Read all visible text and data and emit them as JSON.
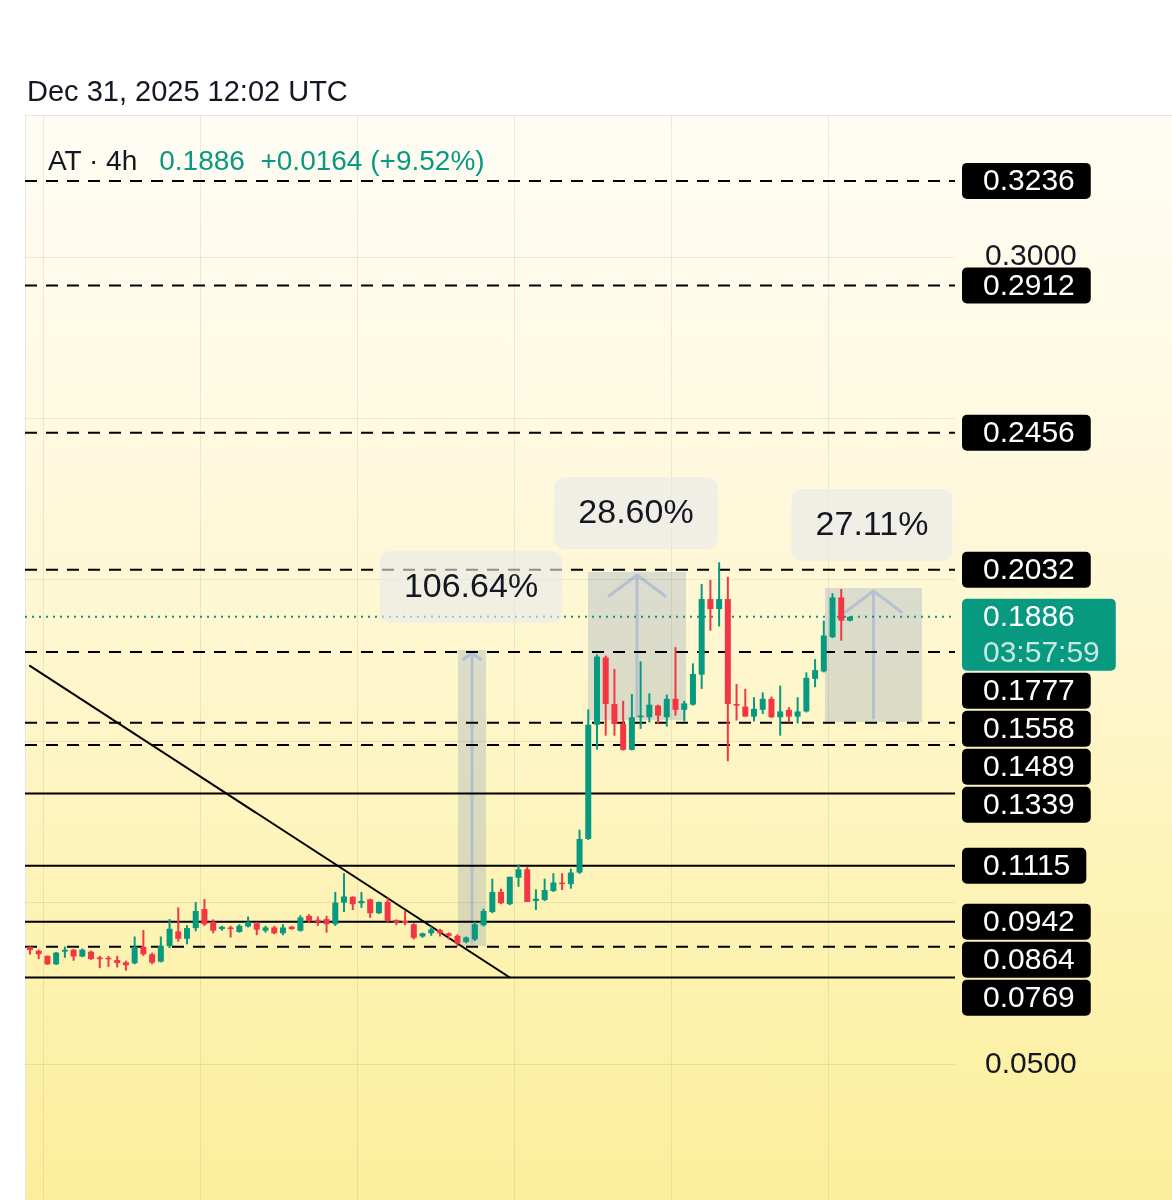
{
  "chart_data": {
    "type": "candlestick",
    "title": "Dec 31, 2025 12:02 UTC",
    "subtitle": "AT · 4h",
    "categories": [
      null,
      null,
      null,
      null,
      null,
      null,
      null,
      null,
      null,
      null,
      null,
      null,
      null,
      null,
      null,
      null,
      null,
      null,
      null,
      null,
      null,
      null,
      null,
      null,
      null,
      null,
      null,
      null,
      null,
      null,
      null,
      null,
      null,
      null,
      null,
      null,
      null,
      null,
      null,
      null,
      null,
      null,
      null,
      null,
      null,
      null,
      null,
      null,
      null,
      null,
      null,
      null,
      null,
      null,
      null,
      null,
      null,
      null,
      null,
      null,
      null,
      null,
      null,
      null,
      null,
      null,
      null,
      null,
      null,
      null,
      null,
      null,
      null,
      null,
      null,
      null,
      null,
      null,
      null,
      null,
      null,
      null,
      null,
      null,
      null,
      null,
      null,
      null,
      null,
      null,
      null,
      null,
      null,
      null,
      null
    ],
    "ohlc": [
      [
        0.0864,
        0.0865,
        0.084,
        0.0854
      ],
      [
        0.0852,
        0.0855,
        0.0826,
        0.0841
      ],
      [
        0.0836,
        0.0837,
        0.0808,
        0.081
      ],
      [
        0.081,
        0.0848,
        0.0808,
        0.0846
      ],
      [
        0.0849,
        0.0865,
        0.083,
        0.0855
      ],
      [
        0.0855,
        0.0857,
        0.0821,
        0.0834
      ],
      [
        0.0834,
        0.0859,
        0.0832,
        0.0855
      ],
      [
        0.0849,
        0.0852,
        0.0824,
        0.0826
      ],
      [
        0.0831,
        0.0836,
        0.0798,
        0.0826
      ],
      [
        0.083,
        0.0836,
        0.0802,
        0.0826
      ],
      [
        0.0823,
        0.0836,
        0.08,
        0.0814
      ],
      [
        0.0816,
        0.0821,
        0.079,
        0.0807
      ],
      [
        0.0813,
        0.0896,
        0.081,
        0.0864
      ],
      [
        0.0864,
        0.0916,
        0.0836,
        0.0841
      ],
      [
        0.0841,
        0.0846,
        0.081,
        0.0815
      ],
      [
        0.0818,
        0.0896,
        0.0816,
        0.0867
      ],
      [
        0.0866,
        0.095,
        0.086,
        0.092
      ],
      [
        0.0912,
        0.0986,
        0.088,
        0.0889
      ],
      [
        0.0889,
        0.0931,
        0.0872,
        0.0922
      ],
      [
        0.0922,
        0.1003,
        0.0912,
        0.0975
      ],
      [
        0.0981,
        0.1012,
        0.0929,
        0.0934
      ],
      [
        0.0941,
        0.0949,
        0.0906,
        0.0914
      ],
      [
        0.0919,
        0.0929,
        0.0914,
        0.0926
      ],
      [
        0.0924,
        0.0929,
        0.0893,
        0.0919
      ],
      [
        0.091,
        0.0934,
        0.0908,
        0.0929
      ],
      [
        0.0927,
        0.0958,
        0.0924,
        0.0941
      ],
      [
        0.0937,
        0.0941,
        0.09,
        0.0917
      ],
      [
        0.0914,
        0.0929,
        0.0908,
        0.0924
      ],
      [
        0.0924,
        0.0929,
        0.0903,
        0.0906
      ],
      [
        0.0906,
        0.0934,
        0.09,
        0.0924
      ],
      [
        0.0926,
        0.0929,
        0.0917,
        0.0919
      ],
      [
        0.0914,
        0.0962,
        0.0911,
        0.0955
      ],
      [
        0.096,
        0.0965,
        0.0939,
        0.0944
      ],
      [
        0.0948,
        0.0958,
        0.0929,
        0.0941
      ],
      [
        0.095,
        0.096,
        0.0908,
        0.0934
      ],
      [
        0.0934,
        0.1034,
        0.0929,
        0.1001
      ],
      [
        0.1001,
        0.1092,
        0.0972,
        0.102
      ],
      [
        0.1019,
        0.102,
        0.0978,
        0.0996
      ],
      [
        0.0999,
        0.1034,
        0.0985,
        0.1006
      ],
      [
        0.1011,
        0.1013,
        0.0954,
        0.0968
      ],
      [
        0.0968,
        0.1004,
        0.0966,
        0.1003
      ],
      [
        0.1003,
        0.1016,
        0.0941,
        0.0944
      ],
      [
        0.0947,
        0.0949,
        0.0931,
        0.0939
      ],
      [
        0.0944,
        0.0975,
        0.0931,
        0.0937
      ],
      [
        0.0934,
        0.0937,
        0.0887,
        0.0892
      ],
      [
        0.0896,
        0.0908,
        0.0892,
        0.0906
      ],
      [
        0.0906,
        0.0927,
        0.0898,
        0.0918
      ],
      [
        0.0916,
        0.092,
        0.0896,
        0.0906
      ],
      [
        0.0906,
        0.0908,
        0.0887,
        0.0898
      ],
      [
        0.0898,
        0.0903,
        0.0865,
        0.0875
      ],
      [
        0.0879,
        0.0896,
        0.0875,
        0.0893
      ],
      [
        0.0887,
        0.0941,
        0.0882,
        0.0934
      ],
      [
        0.0931,
        0.0982,
        0.0927,
        0.0975
      ],
      [
        0.0972,
        0.1075,
        0.0968,
        0.1034
      ],
      [
        0.1034,
        0.1044,
        0.0996,
        0.0999
      ],
      [
        0.0996,
        0.1081,
        0.0993,
        0.1081
      ],
      [
        0.1078,
        0.1119,
        0.105,
        0.1104
      ],
      [
        0.1104,
        0.1112,
        0.1003,
        0.1003
      ],
      [
        0.1006,
        0.1042,
        0.0978,
        0.1013
      ],
      [
        0.1009,
        0.1075,
        0.1006,
        0.104
      ],
      [
        0.1037,
        0.1092,
        0.1034,
        0.1063
      ],
      [
        0.1063,
        0.1092,
        0.104,
        0.1058
      ],
      [
        0.1058,
        0.1106,
        0.1044,
        0.1094
      ],
      [
        0.1094,
        0.1227,
        0.109,
        0.1198
      ],
      [
        0.1198,
        0.1599,
        0.1195,
        0.1552
      ],
      [
        0.1552,
        0.1769,
        0.1475,
        0.1763
      ],
      [
        0.176,
        0.1766,
        0.1518,
        0.1616
      ],
      [
        0.1616,
        0.1724,
        0.1518,
        0.1554
      ],
      [
        0.1554,
        0.1626,
        0.1472,
        0.1474
      ],
      [
        0.1474,
        0.1647,
        0.1472,
        0.1575
      ],
      [
        0.1575,
        0.1748,
        0.1539,
        0.158
      ],
      [
        0.1575,
        0.1649,
        0.1559,
        0.1614
      ],
      [
        0.1611,
        0.1614,
        0.1556,
        0.158
      ],
      [
        0.1575,
        0.1645,
        0.1546,
        0.1632
      ],
      [
        0.1632,
        0.1792,
        0.158,
        0.1598
      ],
      [
        0.1598,
        0.1626,
        0.1562,
        0.1618
      ],
      [
        0.1614,
        0.1742,
        0.1611,
        0.1709
      ],
      [
        0.1707,
        0.1988,
        0.1663,
        0.1941
      ],
      [
        0.1941,
        0.2,
        0.1843,
        0.191
      ],
      [
        0.191,
        0.2055,
        0.1856,
        0.1941
      ],
      [
        0.1941,
        0.201,
        0.1439,
        0.1616
      ],
      [
        0.1616,
        0.1678,
        0.1565,
        0.1611
      ],
      [
        0.1608,
        0.1663,
        0.1577,
        0.1577
      ],
      [
        0.1577,
        0.1637,
        0.1562,
        0.1601
      ],
      [
        0.1598,
        0.1652,
        0.1585,
        0.1632
      ],
      [
        0.1632,
        0.1639,
        0.1573,
        0.1575
      ],
      [
        0.1575,
        0.1673,
        0.1518,
        0.1593
      ],
      [
        0.1598,
        0.1606,
        0.1559,
        0.1577
      ],
      [
        0.1577,
        0.1637,
        0.1556,
        0.1593
      ],
      [
        0.1593,
        0.1714,
        0.159,
        0.1697
      ],
      [
        0.1694,
        0.1755,
        0.1668,
        0.1721
      ],
      [
        0.1717,
        0.1874,
        0.1714,
        0.1828
      ],
      [
        0.1823,
        0.1959,
        0.182,
        0.1946
      ],
      [
        0.1946,
        0.1972,
        0.1812,
        0.1874
      ],
      [
        0.1874,
        0.1888,
        0.1872,
        0.1886
      ]
    ],
    "colors": [
      "#f23645",
      "#f23645",
      "#f23645",
      "#089981",
      "#089981",
      "#f23645",
      "#089981",
      "#f23645",
      "#f23645",
      "#f23645",
      "#f23645",
      "#f23645",
      "#089981",
      "#f23645",
      "#f23645",
      "#089981",
      "#089981",
      "#f23645",
      "#089981",
      "#089981",
      "#f23645",
      "#f23645",
      "#089981",
      "#f23645",
      "#089981",
      "#089981",
      "#f23645",
      "#089981",
      "#f23645",
      "#089981",
      "#f23645",
      "#089981",
      "#f23645",
      "#f23645",
      "#f23645",
      "#089981",
      "#089981",
      "#f23645",
      "#089981",
      "#f23645",
      "#089981",
      "#f23645",
      "#f23645",
      "#f23645",
      "#f23645",
      "#089981",
      "#089981",
      "#f23645",
      "#f23645",
      "#f23645",
      "#089981",
      "#089981",
      "#089981",
      "#089981",
      "#f23645",
      "#089981",
      "#089981",
      "#f23645",
      "#089981",
      "#089981",
      "#089981",
      "#f23645",
      "#089981",
      "#089981",
      "#089981",
      "#089981",
      "#f23645",
      "#f23645",
      "#f23645",
      "#089981",
      "#089981",
      "#089981",
      "#f23645",
      "#089981",
      "#f23645",
      "#089981",
      "#089981",
      "#089981",
      "#f23645",
      "#089981",
      "#f23645",
      "#f23645",
      "#f23645",
      "#089981",
      "#089981",
      "#f23645",
      "#089981",
      "#f23645",
      "#089981",
      "#089981",
      "#089981",
      "#089981",
      "#089981",
      "#f23645",
      "#089981"
    ],
    "series": [
      {
        "type": "line",
        "color": "#000000",
        "values": [
          0.1734,
          null,
          null,
          null,
          null,
          null,
          null,
          null,
          null,
          null,
          null,
          null,
          null,
          null,
          null,
          null,
          null,
          null,
          null,
          null,
          null,
          null,
          null,
          null,
          null,
          null,
          null,
          null,
          null,
          null,
          null,
          null,
          null,
          null,
          null,
          null,
          null,
          null,
          null,
          null,
          null,
          null,
          null,
          null,
          null,
          null,
          null,
          null,
          null,
          null,
          null,
          null,
          null,
          null,
          null,
          0.0769,
          null,
          null,
          null,
          null,
          null,
          null,
          null,
          null,
          null,
          null,
          null,
          null,
          null,
          null,
          null,
          null,
          null,
          null,
          null,
          null,
          null,
          null,
          null,
          null,
          null,
          null,
          null,
          null,
          null,
          null,
          null,
          null,
          null,
          null,
          null,
          null,
          null,
          null,
          null
        ]
      }
    ],
    "ylim": [
      0.008,
      0.344
    ],
    "yticks": [
      {
        "value": 0.05,
        "label": "0.0500"
      },
      {
        "value": 0.1,
        "label": null
      },
      {
        "value": 0.15,
        "label": null
      },
      {
        "value": 0.2,
        "label": null
      },
      {
        "value": 0.25,
        "label": null
      },
      {
        "value": 0.3,
        "label": "0.3000"
      }
    ],
    "grid": true,
    "ref_lines": [
      {
        "axis": "y",
        "value": 0.3236,
        "label": "0.3236",
        "color": "#000000",
        "line_style": "dashed"
      },
      {
        "axis": "y",
        "value": 0.2912,
        "label": "0.2912",
        "color": "#000000",
        "line_style": "dashed"
      },
      {
        "axis": "y",
        "value": 0.2456,
        "label": "0.2456",
        "color": "#000000",
        "line_style": "dashed"
      },
      {
        "axis": "y",
        "value": 0.2032,
        "label": "0.2032",
        "color": "#000000",
        "line_style": "dashed"
      },
      {
        "axis": "y",
        "value": 0.1886,
        "label": "0.1886",
        "color": "#089981",
        "line_style": "dotted"
      },
      {
        "axis": "y",
        "value": 0.1777,
        "label": "0.1777",
        "color": "#000000",
        "line_style": "dashed"
      },
      {
        "axis": "y",
        "value": 0.1558,
        "label": "0.1558",
        "color": "#000000",
        "line_style": "dashed"
      },
      {
        "axis": "y",
        "value": 0.1489,
        "label": "0.1489",
        "color": "#000000",
        "line_style": "dashed"
      },
      {
        "axis": "y",
        "value": 0.1339,
        "label": "0.1339",
        "color": "#000000",
        "line_style": "solid"
      },
      {
        "axis": "y",
        "value": 0.1115,
        "label": "0.1115",
        "color": "#000000",
        "line_style": "solid"
      },
      {
        "axis": "y",
        "value": 0.0942,
        "label": "0.0942",
        "color": "#000000",
        "line_style": "solid"
      },
      {
        "axis": "y",
        "value": 0.0864,
        "label": "0.0864",
        "color": "#000000",
        "line_style": "dashed"
      },
      {
        "axis": "y",
        "value": 0.0769,
        "label": "0.0769",
        "color": "#000000",
        "line_style": "solid"
      }
    ],
    "annotations": [
      "0.1886  +0.0164 (+9.52%)",
      "03:57:59",
      "106.64%",
      "28.60%",
      "27.11%"
    ]
  }
}
